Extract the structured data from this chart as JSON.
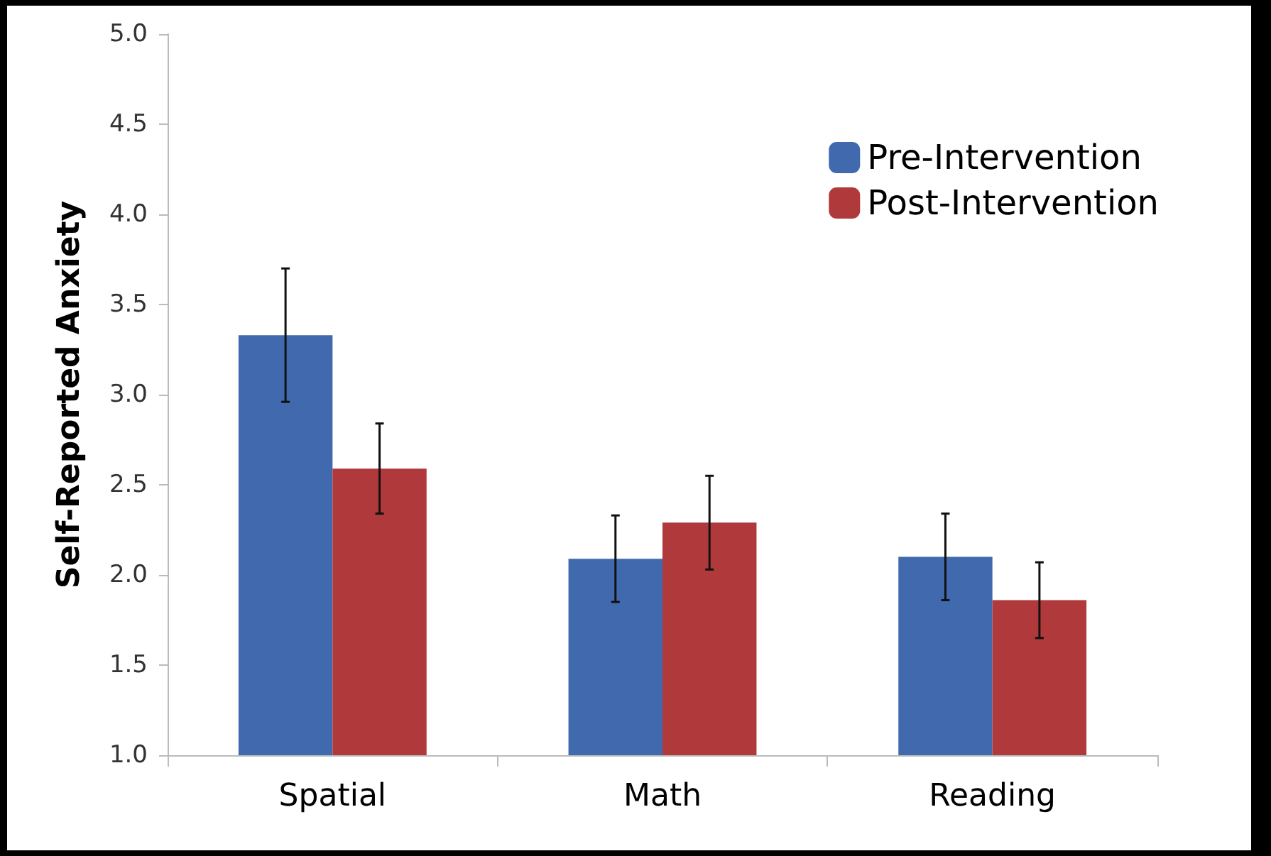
{
  "chart_data": {
    "type": "bar",
    "ylabel": "Self-Reported Anxiety",
    "categories": [
      "Spatial",
      "Math",
      "Reading"
    ],
    "series": [
      {
        "name": "Pre-Intervention",
        "color": "#416aae",
        "values": [
          3.33,
          2.09,
          2.1
        ],
        "errors": [
          0.37,
          0.24,
          0.24
        ]
      },
      {
        "name": "Post-Intervention",
        "color": "#b0393c",
        "values": [
          2.59,
          2.29,
          1.86
        ],
        "errors": [
          0.25,
          0.26,
          0.21
        ]
      }
    ],
    "ylim": [
      1,
      5
    ],
    "yticks": [
      {
        "value": 1,
        "label": "1.0"
      },
      {
        "value": 1.5,
        "label": "1.5"
      },
      {
        "value": 2,
        "label": "2.0"
      },
      {
        "value": 2.5,
        "label": "2.5"
      },
      {
        "value": 3,
        "label": "3.0"
      },
      {
        "value": 3.5,
        "label": "3.5"
      },
      {
        "value": 4,
        "label": "4.0"
      },
      {
        "value": 4.5,
        "label": "4.5"
      },
      {
        "value": 5,
        "label": "5.0"
      }
    ],
    "grid": false,
    "legend": "top right"
  }
}
